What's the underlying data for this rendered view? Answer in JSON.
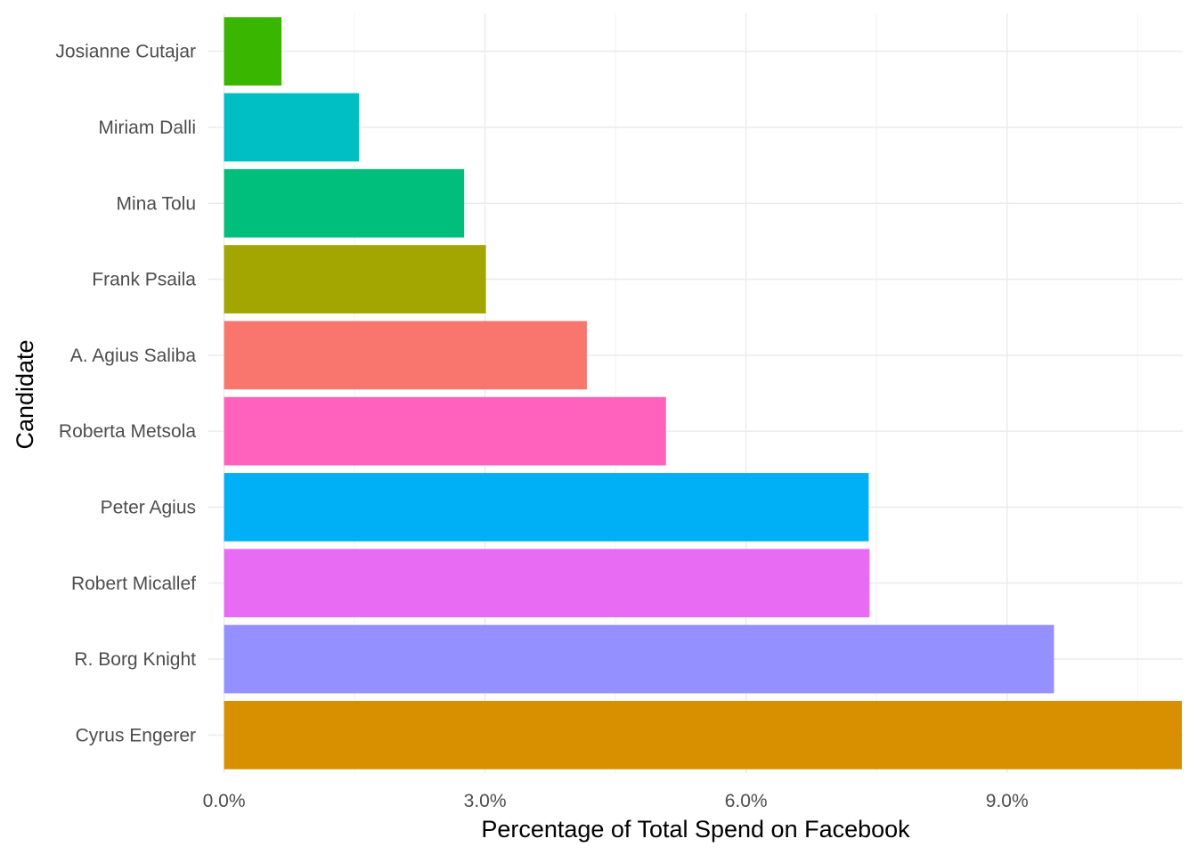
{
  "chart_data": {
    "type": "bar",
    "orientation": "horizontal",
    "xlabel": "Percentage of Total Spend on Facebook",
    "ylabel": "Candidate",
    "xlim": [
      -0.0018,
      0.1102
    ],
    "x_ticks": [
      0,
      0.03,
      0.06,
      0.09
    ],
    "x_tick_labels": [
      "0.0%",
      "3.0%",
      "6.0%",
      "9.0%"
    ],
    "grid": true,
    "legend": "none",
    "bars": [
      {
        "category": "Josianne Cutajar",
        "value": 0.0066,
        "color": "#39B600"
      },
      {
        "category": "Miriam Dalli",
        "value": 0.0155,
        "color": "#00BFC4"
      },
      {
        "category": "Mina Tolu",
        "value": 0.0276,
        "color": "#00BF7D"
      },
      {
        "category": "Frank Psaila",
        "value": 0.0301,
        "color": "#A3A500"
      },
      {
        "category": "A. Agius Saliba",
        "value": 0.0417,
        "color": "#F8766D"
      },
      {
        "category": "Roberta Metsola",
        "value": 0.0508,
        "color": "#FF62BC"
      },
      {
        "category": "Peter Agius",
        "value": 0.0741,
        "color": "#00B0F6"
      },
      {
        "category": "Robert Micallef",
        "value": 0.0742,
        "color": "#E76BF3"
      },
      {
        "category": "R. Borg Knight",
        "value": 0.0954,
        "color": "#9590FF"
      },
      {
        "category": "Cyrus Engerer",
        "value": 0.1101,
        "color": "#D89000"
      }
    ]
  }
}
